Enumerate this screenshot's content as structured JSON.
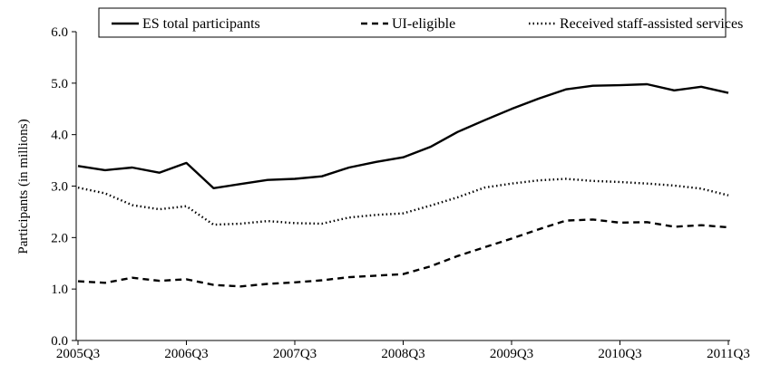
{
  "chart_data": {
    "type": "line",
    "title": "",
    "xlabel": "",
    "ylabel": "Participants (in millions)",
    "ylim": [
      0,
      6
    ],
    "yticks": [
      "0.0",
      "1.0",
      "2.0",
      "3.0",
      "4.0",
      "5.0",
      "6.0"
    ],
    "x": [
      "2005Q3",
      "2005Q4",
      "2006Q1",
      "2006Q2",
      "2006Q3",
      "2006Q4",
      "2007Q1",
      "2007Q2",
      "2007Q3",
      "2007Q4",
      "2008Q1",
      "2008Q2",
      "2008Q3",
      "2008Q4",
      "2009Q1",
      "2009Q2",
      "2009Q3",
      "2009Q4",
      "2010Q1",
      "2010Q2",
      "2010Q3",
      "2010Q4",
      "2011Q1",
      "2011Q2",
      "2011Q3"
    ],
    "xtick_labels": [
      "2005Q3",
      "2006Q3",
      "2007Q3",
      "2008Q3",
      "2009Q3",
      "2010Q3",
      "2011Q3"
    ],
    "grid": false,
    "legend_position": "top",
    "series": [
      {
        "name": "ES total participants",
        "style": "solid",
        "values": [
          3.39,
          3.31,
          3.36,
          3.26,
          3.45,
          2.96,
          3.04,
          3.12,
          3.14,
          3.19,
          3.36,
          3.47,
          3.56,
          3.76,
          4.05,
          4.28,
          4.5,
          4.7,
          4.88,
          4.95,
          4.96,
          4.98,
          4.86,
          4.93,
          4.81
        ]
      },
      {
        "name": "UI-eligible",
        "style": "dashed",
        "values": [
          1.15,
          1.12,
          1.22,
          1.16,
          1.19,
          1.08,
          1.05,
          1.1,
          1.13,
          1.17,
          1.23,
          1.26,
          1.29,
          1.44,
          1.64,
          1.81,
          1.98,
          2.16,
          2.33,
          2.35,
          2.29,
          2.3,
          2.21,
          2.24,
          2.2
        ]
      },
      {
        "name": "Received staff-assisted services",
        "style": "dotted",
        "values": [
          2.97,
          2.86,
          2.63,
          2.55,
          2.61,
          2.25,
          2.27,
          2.32,
          2.28,
          2.27,
          2.39,
          2.44,
          2.47,
          2.62,
          2.78,
          2.97,
          3.05,
          3.11,
          3.14,
          3.1,
          3.08,
          3.05,
          3.01,
          2.95,
          2.82
        ]
      }
    ]
  }
}
